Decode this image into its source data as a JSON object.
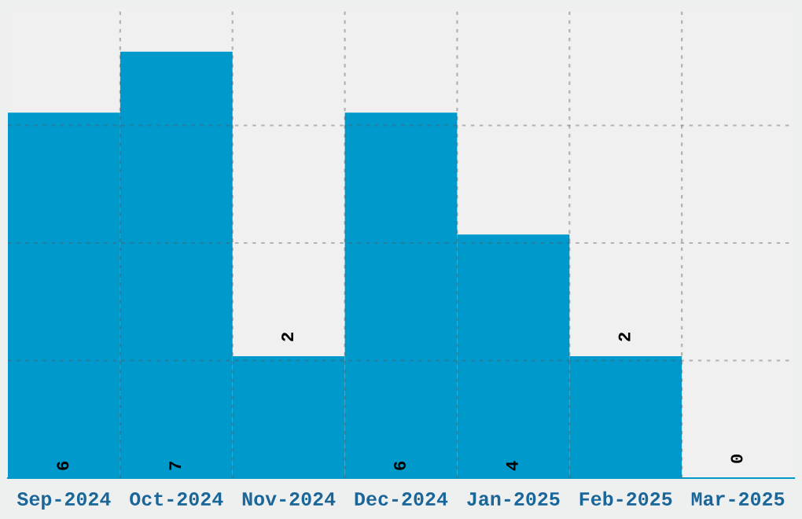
{
  "chart_data": {
    "type": "bar",
    "categories": [
      "Sep-2024",
      "Oct-2024",
      "Nov-2024",
      "Dec-2024",
      "Jan-2025",
      "Feb-2025",
      "Mar-2025"
    ],
    "values": [
      6,
      7,
      2,
      6,
      4,
      2,
      0
    ],
    "color": "#0099cc",
    "ylim": [
      0,
      7.72
    ],
    "yticks": [
      {
        "value": 1.93,
        "label": null
      },
      {
        "value": 3.86,
        "label": null
      },
      {
        "value": 5.79,
        "label": null
      }
    ],
    "tick_labels": "x",
    "grid": true,
    "data_labels": true
  }
}
